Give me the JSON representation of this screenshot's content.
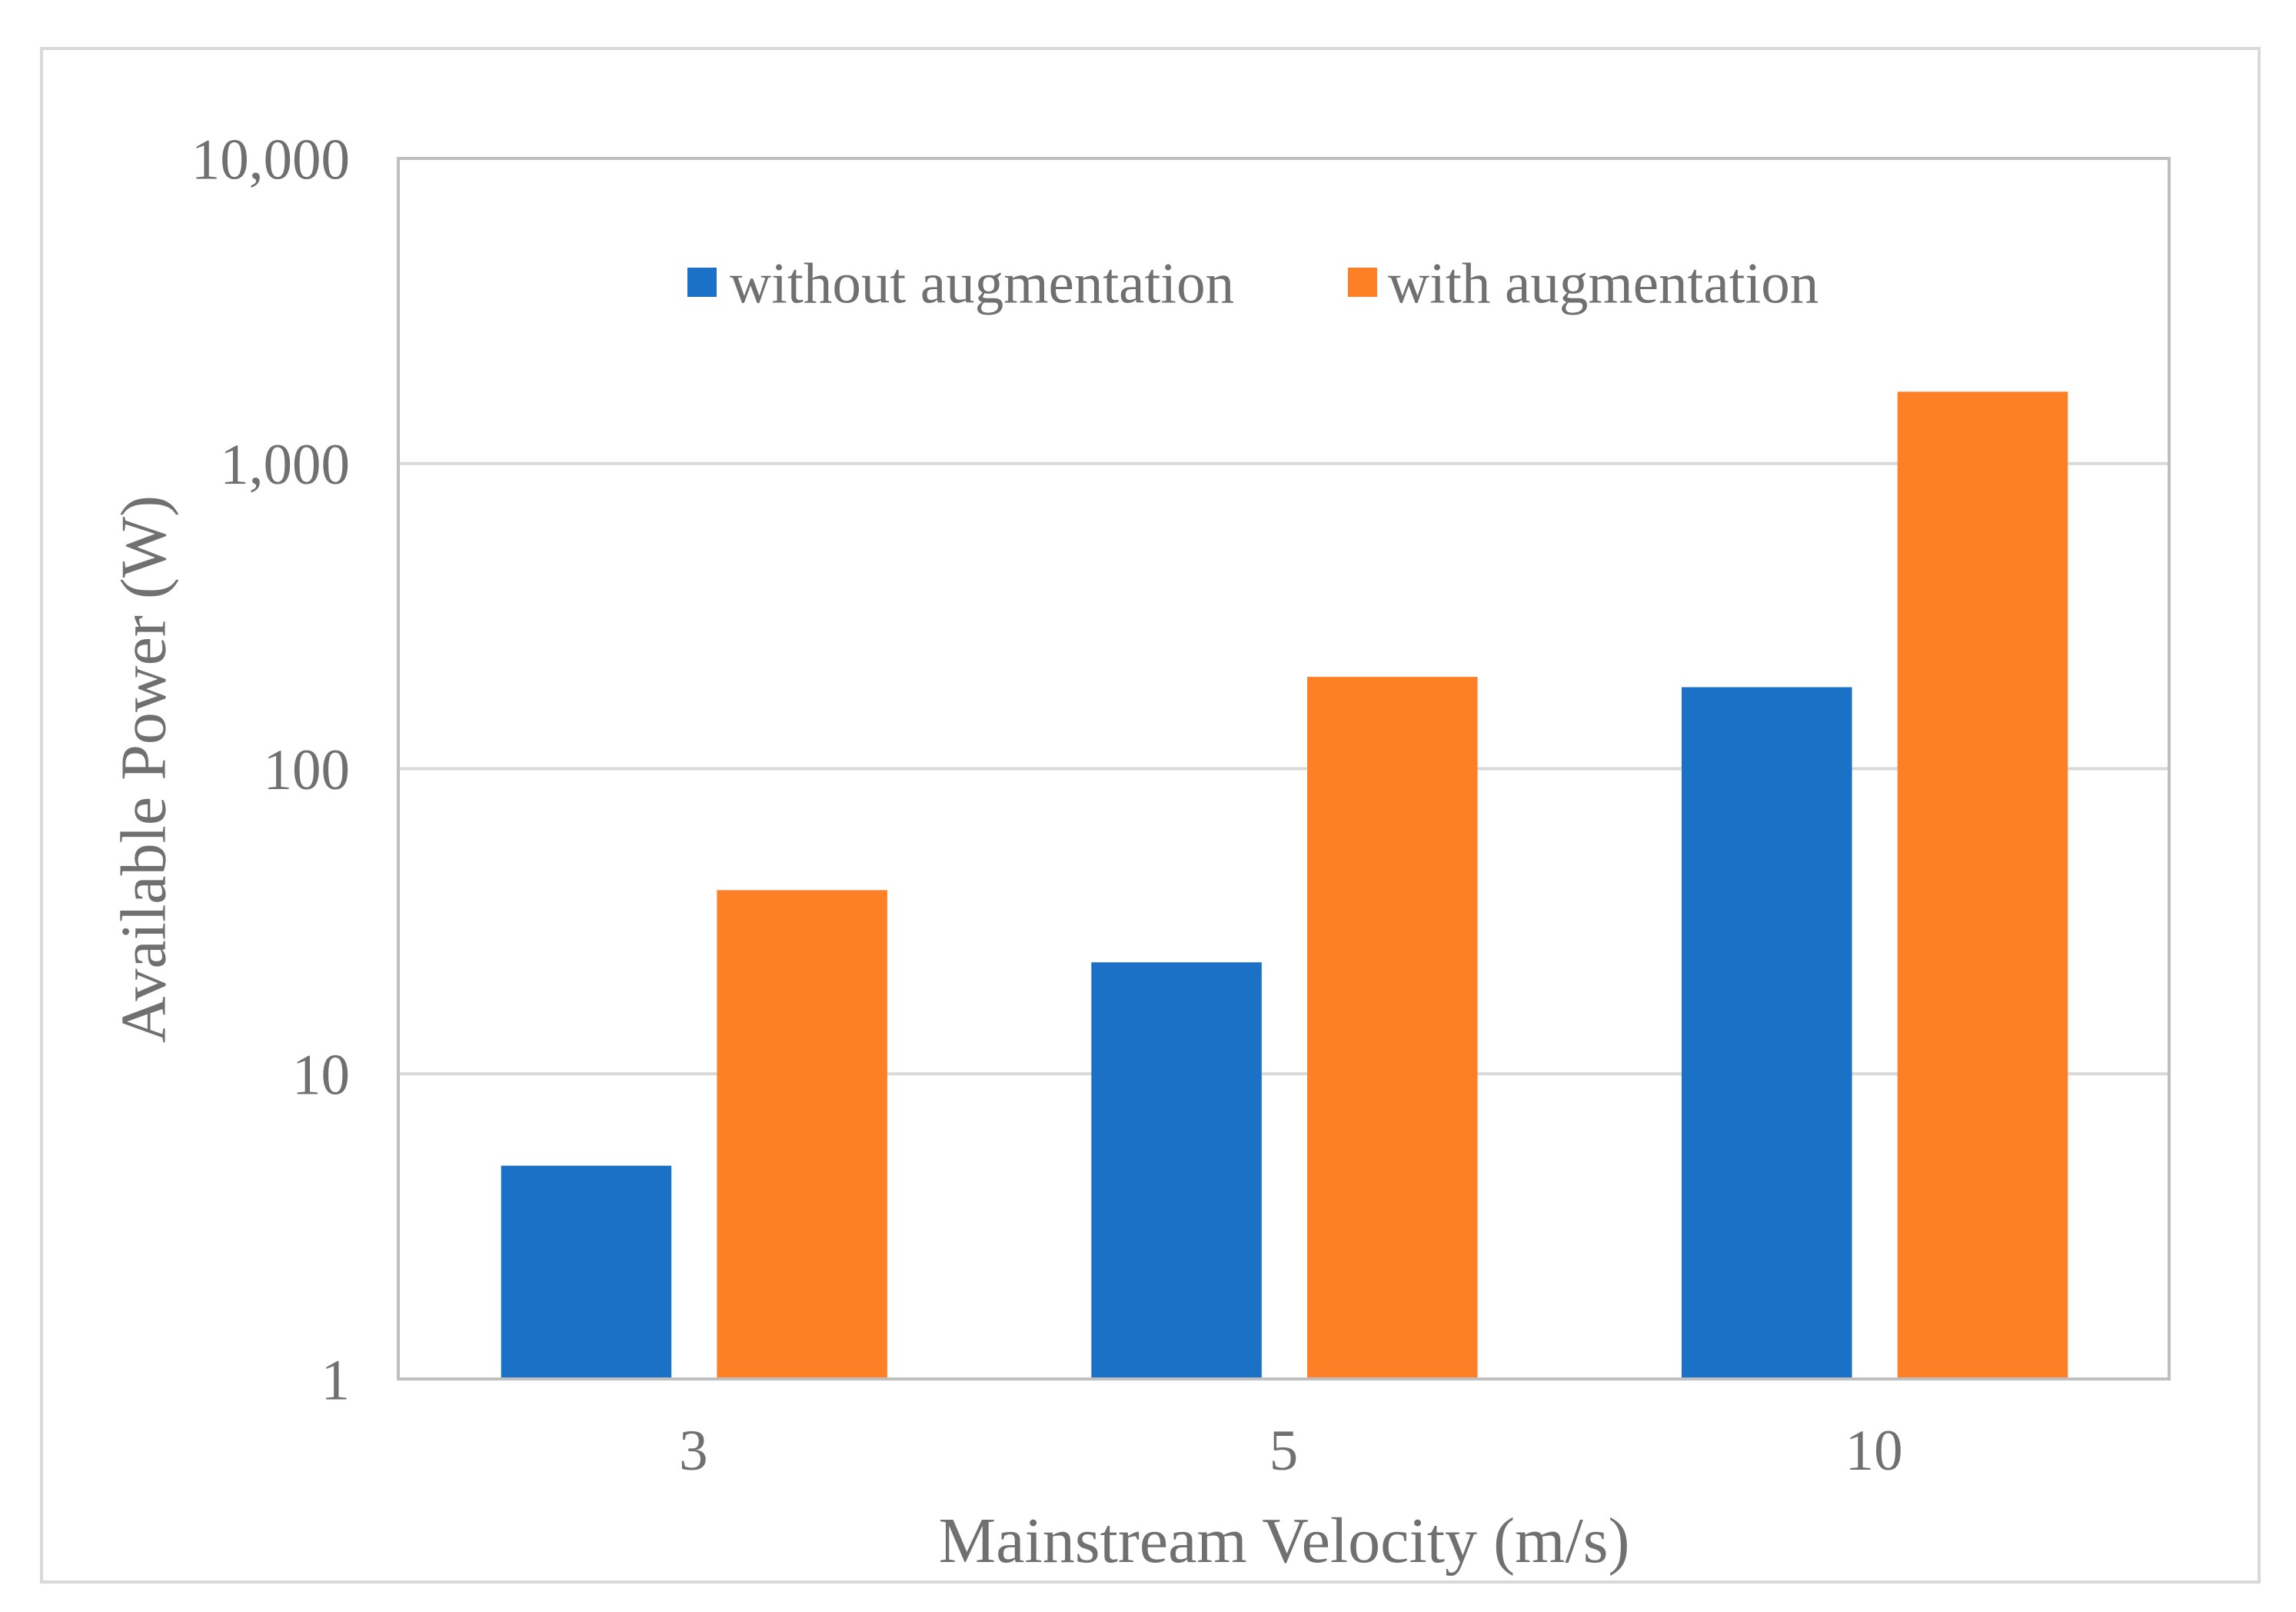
{
  "chart_data": {
    "type": "bar",
    "categories": [
      "3",
      "5",
      "10"
    ],
    "series": [
      {
        "name": "without augmentation",
        "color": "#1a71c6",
        "values": [
          5.0,
          23.2,
          185
        ]
      },
      {
        "name": "with augmentation",
        "color": "#fe8026",
        "values": [
          40,
          200,
          1720
        ]
      }
    ],
    "xlabel": "Mainstream Velocity (m/s)",
    "ylabel": "Available Power (W)",
    "ylim": [
      1,
      10000
    ],
    "yticks": [
      1,
      10,
      100,
      1000,
      10000
    ],
    "ytick_labels": [
      "1",
      "10",
      "100",
      "1,000",
      "10,000"
    ]
  }
}
